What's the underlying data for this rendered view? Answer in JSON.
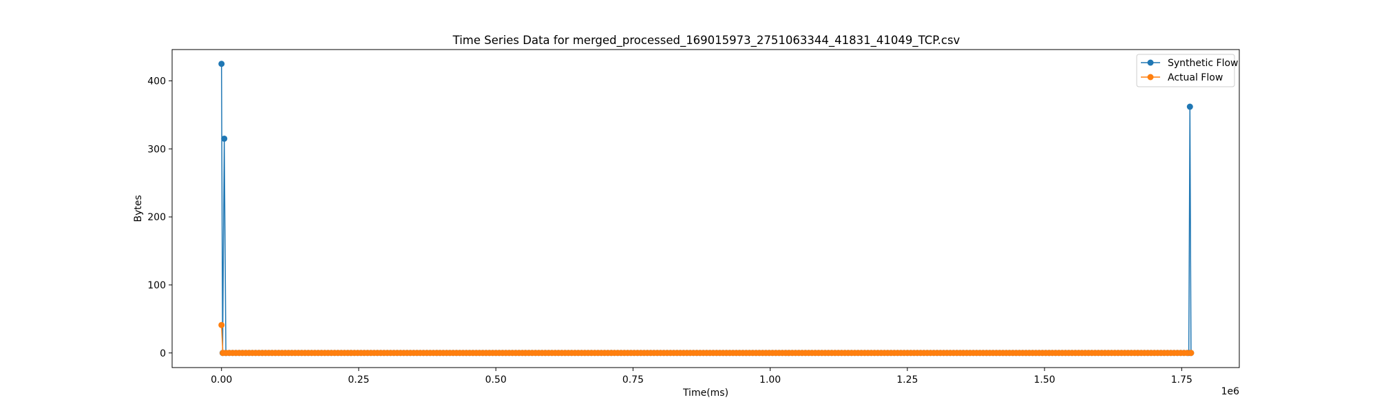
{
  "chart_data": {
    "type": "line",
    "title": "Time Series Data for merged_processed_169015973_2751063344_41831_41049_TCP.csv",
    "xlabel": "Time(ms)",
    "ylabel": "Bytes",
    "x_offset_label": "1e6",
    "xlim": [
      -90000,
      1855000
    ],
    "ylim": [
      -21.5,
      446
    ],
    "x_ticks": [
      0,
      250000,
      500000,
      750000,
      1000000,
      1250000,
      1500000,
      1750000
    ],
    "x_tick_labels": [
      "0.00",
      "0.25",
      "0.50",
      "0.75",
      "1.00",
      "1.25",
      "1.50",
      "1.75"
    ],
    "y_ticks": [
      0,
      100,
      200,
      300,
      400
    ],
    "y_tick_labels": [
      "0",
      "100",
      "200",
      "300",
      "400"
    ],
    "grid": false,
    "legend_position": "top-right",
    "series": [
      {
        "name": "Synthetic Flow",
        "color": "#1f77b4",
        "points": [
          [
            0,
            425
          ],
          [
            2000,
            0
          ],
          [
            5000,
            315
          ],
          [
            8000,
            0
          ],
          [
            1763000,
            0
          ],
          [
            1765000,
            362
          ],
          [
            1767000,
            0
          ]
        ],
        "fill": {
          "from": 8000,
          "to": 1763000,
          "step": 6000,
          "value": 0
        }
      },
      {
        "name": "Actual Flow",
        "color": "#ff7f0e",
        "points": [
          [
            0,
            41
          ],
          [
            2500,
            0
          ],
          [
            1767000,
            0
          ]
        ],
        "fill": {
          "from": 2500,
          "to": 1767000,
          "step": 6000,
          "value": 0
        }
      }
    ]
  }
}
